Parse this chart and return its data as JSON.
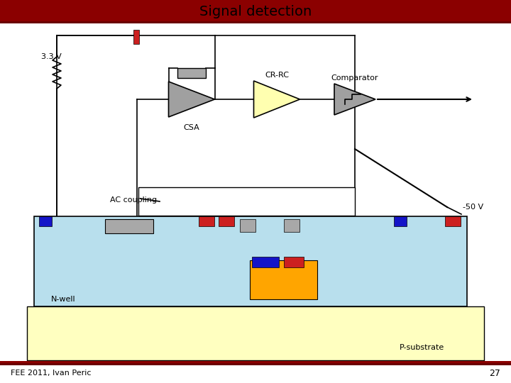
{
  "title": "Signal detection",
  "header_bg": "#8B0000",
  "slide_bg": "#FFFFFF",
  "footer_text": "FEE 2011, Ivan Peric",
  "page_number": "27",
  "label_33v": "3.3 V",
  "label_crrc": "CR-RC",
  "label_comparator": "Comparator",
  "label_csa": "CSA",
  "label_ac": "AC coupling",
  "label_neg50v": "-50 V",
  "label_nwell": "N-well",
  "label_psub": "P-substrate",
  "nwell_fill": "#B8DFED",
  "psub_fill": "#FFFFC0",
  "orange_fill": "#FFA500",
  "gray_fill": "#A8A8A8",
  "blue_fill": "#1414C8",
  "red_fill": "#CC2020",
  "csa_tri_fill": "#A0A0A0",
  "crrc_tri_fill": "#FFFFB0",
  "comp_tri_fill": "#A0A0A0",
  "wire_color": "#000000",
  "title_fontsize": 14
}
